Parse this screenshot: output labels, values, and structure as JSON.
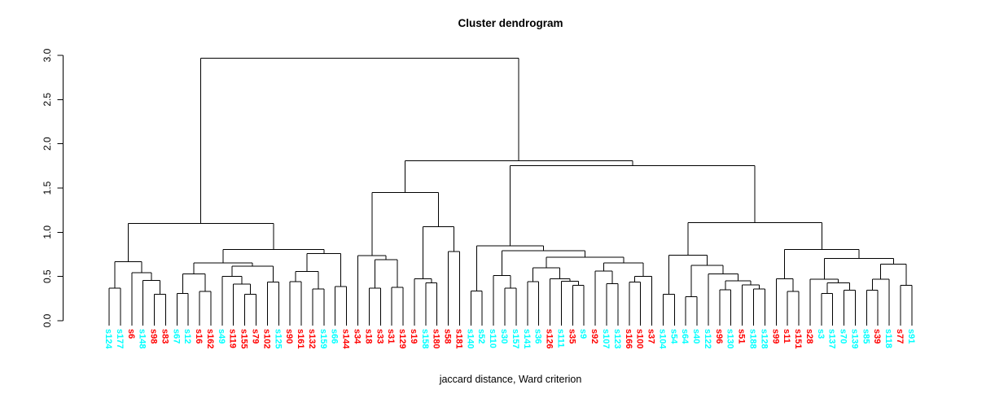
{
  "chart_data": {
    "type": "dendrogram",
    "title": "Cluster dendrogram",
    "xlabel": "jaccard distance, Ward criterion",
    "ylabel": "",
    "yticks": [
      "0.0",
      "0.5",
      "1.0",
      "1.5",
      "2.0",
      "2.5",
      "3.0"
    ],
    "ylim": [
      0,
      3
    ],
    "grid": false,
    "colors": {
      "cyan": "#00FFFF",
      "red": "#FF0000",
      "line": "#000000"
    },
    "leaves": [
      {
        "label": "s124",
        "color": "cyan"
      },
      {
        "label": "s177",
        "color": "cyan"
      },
      {
        "label": "s6",
        "color": "red"
      },
      {
        "label": "s148",
        "color": "cyan"
      },
      {
        "label": "s98",
        "color": "red"
      },
      {
        "label": "s83",
        "color": "red"
      },
      {
        "label": "s67",
        "color": "cyan"
      },
      {
        "label": "s12",
        "color": "cyan"
      },
      {
        "label": "s16",
        "color": "red"
      },
      {
        "label": "s162",
        "color": "red"
      },
      {
        "label": "s49",
        "color": "cyan"
      },
      {
        "label": "s119",
        "color": "red"
      },
      {
        "label": "s155",
        "color": "red"
      },
      {
        "label": "s79",
        "color": "red"
      },
      {
        "label": "s102",
        "color": "red"
      },
      {
        "label": "s125",
        "color": "cyan"
      },
      {
        "label": "s90",
        "color": "red"
      },
      {
        "label": "s161",
        "color": "red"
      },
      {
        "label": "s132",
        "color": "red"
      },
      {
        "label": "s159",
        "color": "cyan"
      },
      {
        "label": "s66",
        "color": "cyan"
      },
      {
        "label": "s144",
        "color": "red"
      },
      {
        "label": "s34",
        "color": "red"
      },
      {
        "label": "s18",
        "color": "red"
      },
      {
        "label": "s33",
        "color": "red"
      },
      {
        "label": "s31",
        "color": "red"
      },
      {
        "label": "s129",
        "color": "red"
      },
      {
        "label": "s19",
        "color": "red"
      },
      {
        "label": "s158",
        "color": "cyan"
      },
      {
        "label": "s180",
        "color": "red"
      },
      {
        "label": "s58",
        "color": "red"
      },
      {
        "label": "s181",
        "color": "red"
      },
      {
        "label": "s140",
        "color": "cyan"
      },
      {
        "label": "s52",
        "color": "cyan"
      },
      {
        "label": "s110",
        "color": "cyan"
      },
      {
        "label": "s30",
        "color": "cyan"
      },
      {
        "label": "s157",
        "color": "cyan"
      },
      {
        "label": "s141",
        "color": "cyan"
      },
      {
        "label": "s36",
        "color": "cyan"
      },
      {
        "label": "s126",
        "color": "red"
      },
      {
        "label": "s111",
        "color": "cyan"
      },
      {
        "label": "s35",
        "color": "red"
      },
      {
        "label": "s9",
        "color": "cyan"
      },
      {
        "label": "s92",
        "color": "red"
      },
      {
        "label": "s107",
        "color": "cyan"
      },
      {
        "label": "s123",
        "color": "cyan"
      },
      {
        "label": "s166",
        "color": "red"
      },
      {
        "label": "s100",
        "color": "red"
      },
      {
        "label": "s37",
        "color": "red"
      },
      {
        "label": "s104",
        "color": "cyan"
      },
      {
        "label": "s54",
        "color": "cyan"
      },
      {
        "label": "s64",
        "color": "cyan"
      },
      {
        "label": "s40",
        "color": "cyan"
      },
      {
        "label": "s122",
        "color": "cyan"
      },
      {
        "label": "s96",
        "color": "red"
      },
      {
        "label": "s130",
        "color": "cyan"
      },
      {
        "label": "s51",
        "color": "red"
      },
      {
        "label": "s188",
        "color": "cyan"
      },
      {
        "label": "s128",
        "color": "cyan"
      },
      {
        "label": "s99",
        "color": "red"
      },
      {
        "label": "s11",
        "color": "red"
      },
      {
        "label": "s151",
        "color": "red"
      },
      {
        "label": "s28",
        "color": "red"
      },
      {
        "label": "s3",
        "color": "cyan"
      },
      {
        "label": "s137",
        "color": "cyan"
      },
      {
        "label": "s70",
        "color": "cyan"
      },
      {
        "label": "s139",
        "color": "cyan"
      },
      {
        "label": "s85",
        "color": "cyan"
      },
      {
        "label": "s39",
        "color": "red"
      },
      {
        "label": "s118",
        "color": "cyan"
      },
      {
        "label": "s77",
        "color": "red"
      },
      {
        "label": "s91",
        "color": "cyan"
      }
    ],
    "tree": [
      2.97,
      [
        1.1,
        [
          0.665,
          [
            0.37,
            0,
            1
          ],
          [
            0.545,
            2,
            [
              0.455,
              3,
              [
                0.3,
                4,
                5
              ]
            ]
          ]
        ],
        [
          0.805,
          [
            0.655,
            [
              0.53,
              [
                0.31,
                6,
                7
              ],
              [
                0.33,
                8,
                9
              ]
            ],
            [
              0.615,
              [
                0.5,
                10,
                [
                  0.415,
                  11,
                  [
                    0.3,
                    12,
                    13
                  ]
                ]
              ],
              [
                0.435,
                14,
                15
              ]
            ]
          ],
          [
            0.76,
            [
              0.555,
              [
                0.44,
                16,
                17
              ],
              [
                0.36,
                18,
                19
              ]
            ],
            [
              0.385,
              20,
              21
            ]
          ]
        ]
      ],
      [
        1.81,
        [
          1.45,
          [
            0.735,
            22,
            [
              0.69,
              [
                0.37,
                23,
                24
              ],
              [
                0.375,
                25,
                26
              ]
            ]
          ],
          [
            1.065,
            [
              0.475,
              27,
              [
                0.43,
                28,
                29
              ]
            ],
            [
              0.78,
              30,
              31
            ]
          ]
        ],
        [
          1.755,
          [
            0.845,
            [
              0.335,
              32,
              33
            ],
            [
              0.79,
              [
                0.51,
                34,
                [
                  0.37,
                  35,
                  36
                ]
              ],
              [
                0.72,
                [
                  0.6,
                  [
                    0.44,
                    37,
                    38
                  ],
                  [
                    0.475,
                    39,
                    [
                      0.445,
                      40,
                      [
                        0.4,
                        41,
                        42
                      ]
                    ]
                  ]
                ],
                [
                  0.655,
                  [
                    0.56,
                    43,
                    [
                      0.42,
                      44,
                      45
                    ]
                  ],
                  [
                    0.5,
                    [
                      0.435,
                      46,
                      47
                    ],
                    48
                  ]
                ]
              ]
            ]
          ],
          [
            1.11,
            [
              0.742,
              [
                0.3,
                49,
                50
              ],
              [
                0.628,
                [
                  0.27,
                  51,
                  52
                ],
                [
                  0.527,
                  53,
                  [
                    0.45,
                    [
                      0.35,
                      54,
                      55
                    ],
                    [
                      0.405,
                      56,
                      [
                        0.36,
                        57,
                        58
                      ]
                    ]
                  ]
                ]
              ]
            ],
            [
              0.803,
              [
                0.472,
                59,
                [
                  0.33,
                  60,
                  61
                ]
              ],
              [
                0.702,
                [
                  0.47,
                  62,
                  [
                    0.43,
                    [
                      0.31,
                      63,
                      64
                    ],
                    [
                      0.345,
                      65,
                      66
                    ]
                  ]
                ],
                [
                  0.64,
                  [
                    0.47,
                    [
                      0.345,
                      67,
                      68
                    ],
                    69
                  ],
                  [
                    0.4,
                    70,
                    71
                  ]
                ]
              ]
            ]
          ]
        ]
      ]
    ]
  }
}
